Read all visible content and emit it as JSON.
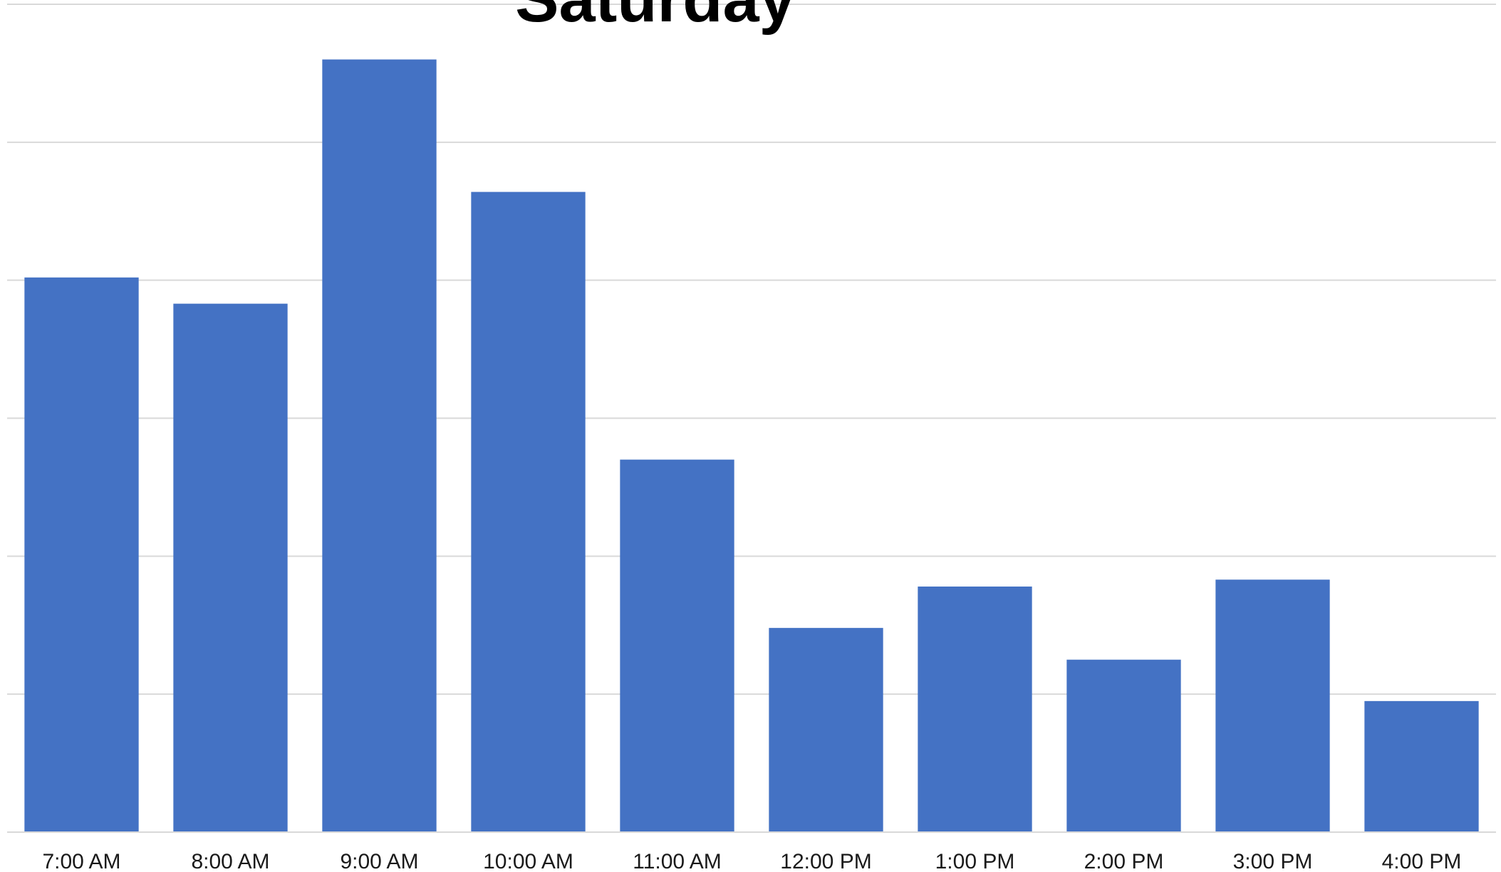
{
  "chart_data": {
    "type": "bar",
    "title": "Saturday",
    "categories": [
      "7:00 AM",
      "8:00 AM",
      "9:00 AM",
      "10:00 AM",
      "11:00 AM",
      "12:00 PM",
      "1:00 PM",
      "2:00 PM",
      "3:00 PM",
      "4:00 PM"
    ],
    "series": [
      {
        "values": [
          40.2,
          38.3,
          56.0,
          46.4,
          27.0,
          14.8,
          17.8,
          12.5,
          18.3,
          9.5
        ],
        "color": "#4472c4"
      }
    ],
    "ylim": [
      0,
      60
    ],
    "y_gridline_step": 10,
    "grid": true,
    "legend": "none",
    "xlabel": "",
    "ylabel": ""
  }
}
